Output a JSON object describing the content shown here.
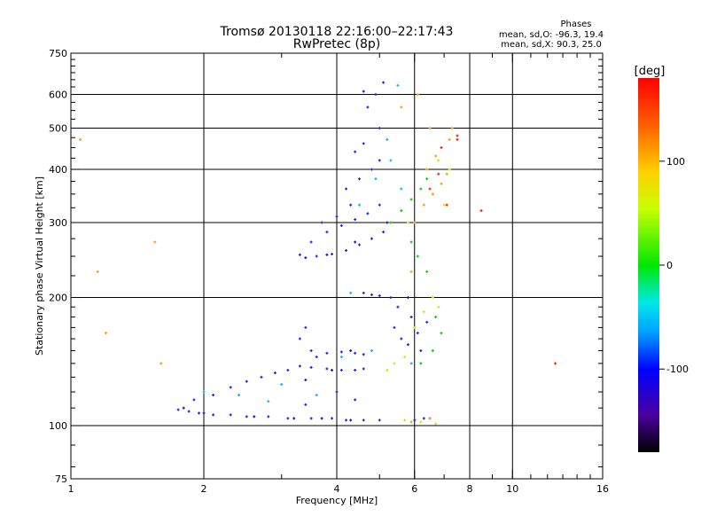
{
  "chart_data": {
    "type": "scatter",
    "title": "Tromsø 20130118 22:16:00–22:17:43",
    "subtitle": "RwPretec (8p)",
    "xlabel": "Frequency [MHz]",
    "ylabel": "Stationary phase Virtual Height [km]",
    "x_scale": "log",
    "y_scale": "log",
    "xlim": [
      1,
      16
    ],
    "ylim": [
      75,
      750
    ],
    "x_ticks": [
      1,
      2,
      4,
      6,
      8,
      10,
      16
    ],
    "y_ticks": [
      75,
      100,
      200,
      300,
      400,
      500,
      600,
      750
    ],
    "grid": true,
    "phase_info": {
      "heading": "Phases",
      "line_o": "mean, sd,O: -96.3, 19.4",
      "line_x": "mean, sd,X:  90.3, 25.0"
    },
    "colorbar": {
      "label": "[deg]",
      "tick_labels": [
        "100",
        "0",
        "-100"
      ],
      "tick_values": [
        100,
        0,
        -100
      ],
      "range": [
        -180,
        180
      ]
    },
    "series": [
      {
        "name": "",
        "color_phase": -100,
        "color": "#1a1aff",
        "points": [
          [
            1.75,
            109
          ],
          [
            1.85,
            108
          ],
          [
            1.95,
            107
          ],
          [
            2.1,
            106
          ],
          [
            2.3,
            106
          ],
          [
            2.5,
            105
          ],
          [
            2.8,
            105
          ],
          [
            3.1,
            104
          ],
          [
            3.5,
            104
          ],
          [
            3.9,
            104
          ],
          [
            4.2,
            103
          ],
          [
            4.6,
            103
          ],
          [
            5.0,
            103
          ],
          [
            1.9,
            115
          ],
          [
            2.1,
            118
          ],
          [
            2.3,
            123
          ],
          [
            2.5,
            127
          ],
          [
            2.7,
            130
          ],
          [
            2.9,
            133
          ],
          [
            3.1,
            135
          ],
          [
            3.3,
            138
          ],
          [
            3.5,
            137
          ],
          [
            3.8,
            136
          ],
          [
            4.1,
            135
          ],
          [
            4.4,
            135
          ],
          [
            4.6,
            136
          ],
          [
            3.5,
            150
          ],
          [
            3.8,
            148
          ],
          [
            4.1,
            149
          ],
          [
            4.4,
            148
          ],
          [
            4.6,
            147
          ],
          [
            3.3,
            160
          ],
          [
            3.4,
            170
          ],
          [
            3.6,
            145
          ],
          [
            3.3,
            252
          ],
          [
            3.6,
            250
          ],
          [
            3.9,
            253
          ],
          [
            4.2,
            258
          ],
          [
            4.5,
            266
          ],
          [
            4.8,
            275
          ],
          [
            5.1,
            285
          ],
          [
            3.5,
            270
          ],
          [
            3.8,
            285
          ],
          [
            4.1,
            295
          ],
          [
            4.4,
            305
          ],
          [
            4.7,
            315
          ],
          [
            5.0,
            330
          ],
          [
            4.2,
            360
          ],
          [
            4.5,
            380
          ],
          [
            4.8,
            400
          ],
          [
            5.0,
            420
          ],
          [
            4.4,
            440
          ],
          [
            4.6,
            460
          ],
          [
            5.0,
            500
          ],
          [
            4.9,
            600
          ],
          [
            5.1,
            640
          ],
          [
            4.7,
            560
          ],
          [
            4.3,
            330
          ],
          [
            4.0,
            310
          ],
          [
            3.7,
            300
          ],
          [
            4.6,
            205
          ],
          [
            4.8,
            203
          ],
          [
            5.0,
            202
          ],
          [
            5.3,
            200
          ],
          [
            5.5,
            190
          ],
          [
            5.4,
            170
          ],
          [
            5.6,
            160
          ],
          [
            5.8,
            155
          ],
          [
            6.1,
            165
          ],
          [
            6.4,
            175
          ],
          [
            6.2,
            150
          ],
          [
            5.9,
            180
          ],
          [
            6.0,
            103
          ],
          [
            6.3,
            104
          ],
          [
            6.5,
            104
          ],
          [
            4.0,
            120
          ],
          [
            4.4,
            115
          ],
          [
            3.4,
            112
          ]
        ]
      },
      {
        "name": "",
        "color_phase": -130,
        "color": "#2a00c8",
        "points": [
          [
            1.8,
            110
          ],
          [
            2.0,
            107
          ],
          [
            2.6,
            105
          ],
          [
            3.2,
            104
          ],
          [
            3.7,
            104
          ],
          [
            4.3,
            103
          ],
          [
            3.4,
            128
          ],
          [
            3.9,
            135
          ],
          [
            4.3,
            150
          ],
          [
            3.4,
            248
          ],
          [
            3.8,
            252
          ],
          [
            4.4,
            270
          ],
          [
            5.2,
            300
          ],
          [
            4.6,
            610
          ],
          [
            5.8,
            200
          ]
        ]
      },
      {
        "name": "",
        "color_phase": -60,
        "color": "#00b4ff",
        "points": [
          [
            2.0,
            120
          ],
          [
            2.4,
            118
          ],
          [
            2.8,
            114
          ],
          [
            3.0,
            125
          ],
          [
            3.6,
            118
          ],
          [
            4.1,
            145
          ],
          [
            4.5,
            330
          ],
          [
            4.9,
            380
          ],
          [
            5.3,
            420
          ],
          [
            5.6,
            360
          ],
          [
            4.8,
            150
          ],
          [
            5.2,
            470
          ],
          [
            5.5,
            630
          ],
          [
            4.3,
            205
          ],
          [
            5.9,
            140
          ]
        ]
      },
      {
        "name": "",
        "color_phase": 20,
        "color": "#00d000",
        "points": [
          [
            5.3,
            300
          ],
          [
            5.6,
            320
          ],
          [
            5.9,
            340
          ],
          [
            6.2,
            360
          ],
          [
            6.4,
            380
          ],
          [
            5.9,
            270
          ],
          [
            6.1,
            250
          ],
          [
            6.4,
            230
          ],
          [
            6.7,
            180
          ],
          [
            6.9,
            165
          ],
          [
            6.6,
            150
          ],
          [
            6.2,
            140
          ]
        ]
      },
      {
        "name": "",
        "color_phase": 90,
        "color": "#d8e400",
        "points": [
          [
            5.2,
            135
          ],
          [
            5.4,
            140
          ],
          [
            5.7,
            145
          ],
          [
            6.0,
            170
          ],
          [
            6.3,
            185
          ],
          [
            6.6,
            200
          ],
          [
            6.8,
            190
          ],
          [
            5.7,
            103
          ],
          [
            6.2,
            102
          ],
          [
            6.7,
            101
          ],
          [
            5.8,
            300
          ],
          [
            6.6,
            350
          ],
          [
            7.0,
            330
          ],
          [
            7.2,
            400
          ],
          [
            6.8,
            420
          ]
        ]
      },
      {
        "name": "",
        "color_phase": 140,
        "color": "#ff9a00",
        "points": [
          [
            6.0,
            300
          ],
          [
            6.3,
            330
          ],
          [
            6.6,
            350
          ],
          [
            6.9,
            370
          ],
          [
            7.1,
            390
          ],
          [
            6.4,
            400
          ],
          [
            6.7,
            430
          ],
          [
            7.2,
            470
          ],
          [
            6.5,
            500
          ],
          [
            5.6,
            560
          ],
          [
            6.1,
            600
          ],
          [
            5.9,
            230
          ],
          [
            6.5,
            104
          ],
          [
            5.9,
            102
          ],
          [
            7.3,
            500
          ],
          [
            1.05,
            470
          ],
          [
            1.55,
            270
          ],
          [
            1.6,
            140
          ],
          [
            1.2,
            165
          ],
          [
            1.15,
            230
          ]
        ]
      },
      {
        "name": "",
        "color_phase": 170,
        "color": "#ff1a00",
        "points": [
          [
            6.5,
            360
          ],
          [
            6.8,
            390
          ],
          [
            7.1,
            330
          ],
          [
            6.9,
            450
          ],
          [
            7.5,
            480
          ],
          [
            7.5,
            470
          ],
          [
            12.5,
            140
          ],
          [
            8.5,
            320
          ]
        ]
      }
    ]
  }
}
